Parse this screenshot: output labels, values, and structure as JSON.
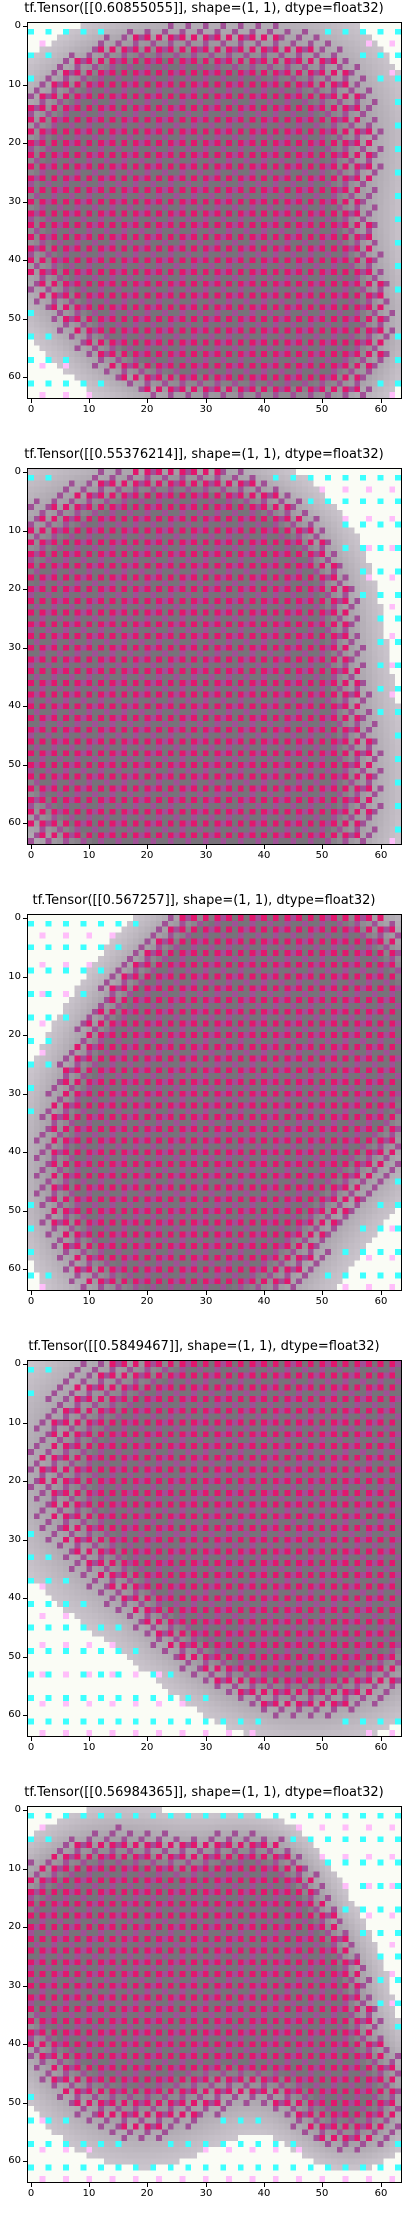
{
  "panels": [
    {
      "title": "tf.Tensor([[0.60855055]], shape=(1, 1), dtype=float32)"
    },
    {
      "title": "tf.Tensor([[0.55376214]], shape=(1, 1), dtype=float32)"
    },
    {
      "title": "tf.Tensor([[0.567257]], shape=(1, 1), dtype=float32)"
    },
    {
      "title": "tf.Tensor([[0.5849467]], shape=(1, 1), dtype=float32)"
    },
    {
      "title": "tf.Tensor([[0.56984365]], shape=(1, 1), dtype=float32)"
    }
  ],
  "axis": {
    "xticks": [
      "0",
      "10",
      "20",
      "30",
      "40",
      "50",
      "60"
    ],
    "yticks": [
      "0",
      "10",
      "20",
      "30",
      "40",
      "50",
      "60"
    ]
  },
  "colors": {
    "background": "#ffffff",
    "accent_magenta": "#e0176e",
    "accent_cyan": "#33ffff",
    "base_gray": "#8a7f88"
  }
}
